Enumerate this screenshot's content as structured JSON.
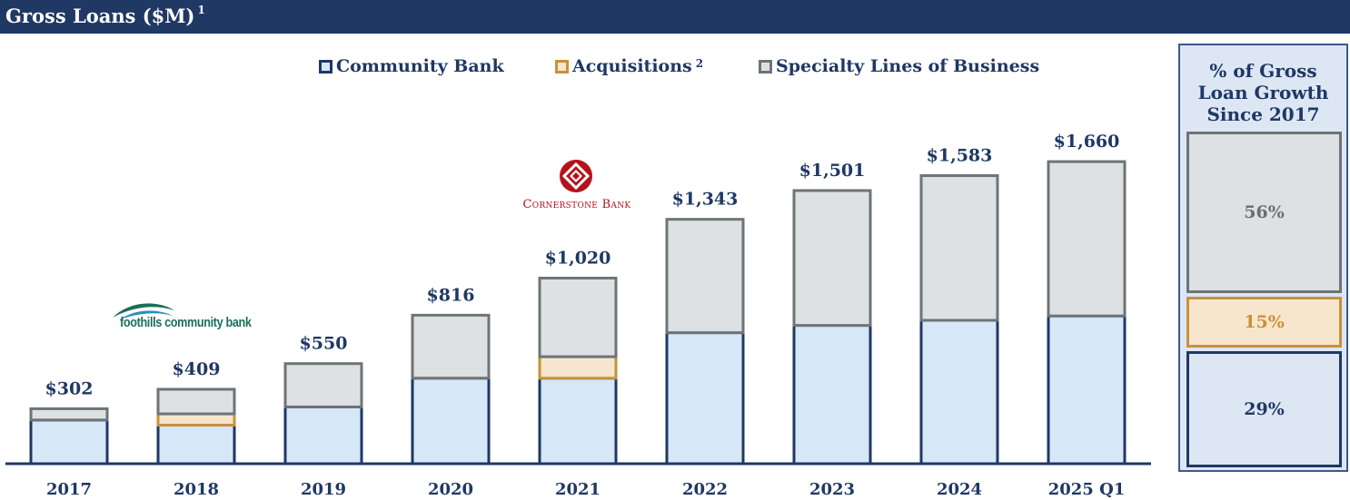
{
  "header": {
    "title": "Gross Loans ($M)",
    "footnote": "1"
  },
  "legend": [
    {
      "label": "Community Bank",
      "footnote": "",
      "fill": "#d6e8f7",
      "stroke": "#1f3864"
    },
    {
      "label": "Acquisitions",
      "footnote": "2",
      "fill": "#f5e6cf",
      "stroke": "#c8913a"
    },
    {
      "label": "Specialty Lines of Business",
      "footnote": "",
      "fill": "#dee1e4",
      "stroke": "#6e7476"
    }
  ],
  "logos": {
    "foothills": "foothills community bank",
    "cornerstone": "Cornerstone Bank"
  },
  "side_panel": {
    "title_lines": [
      "% of Gross",
      "Loan Growth",
      "Since 2017"
    ],
    "specialty_pct": "56%",
    "acquisitions_pct": "15%",
    "community_pct": "29%"
  },
  "chart_data": {
    "type": "bar",
    "stacked": true,
    "title": "Gross Loans ($M)",
    "categories": [
      "2017",
      "2018",
      "2019",
      "2020",
      "2021",
      "2022",
      "2023",
      "2024",
      "2025 Q1"
    ],
    "totals": [
      302,
      409,
      550,
      816,
      1020,
      1343,
      1501,
      1583,
      1660
    ],
    "total_labels": [
      "$302",
      "$409",
      "$550",
      "$816",
      "$1,020",
      "$1,343",
      "$1,501",
      "$1,583",
      "$1,660"
    ],
    "series": [
      {
        "name": "Community Bank",
        "values": [
          240,
          212,
          312,
          470,
          470,
          720,
          760,
          788,
          812
        ]
      },
      {
        "name": "Acquisitions",
        "values": [
          0,
          62,
          0,
          0,
          118,
          0,
          0,
          0,
          0
        ]
      },
      {
        "name": "Specialty Lines of Business",
        "values": [
          62,
          135,
          238,
          346,
          432,
          623,
          741,
          795,
          848
        ]
      }
    ],
    "ylim": [
      0,
      1850
    ],
    "grid": false,
    "legend_position": "top"
  }
}
